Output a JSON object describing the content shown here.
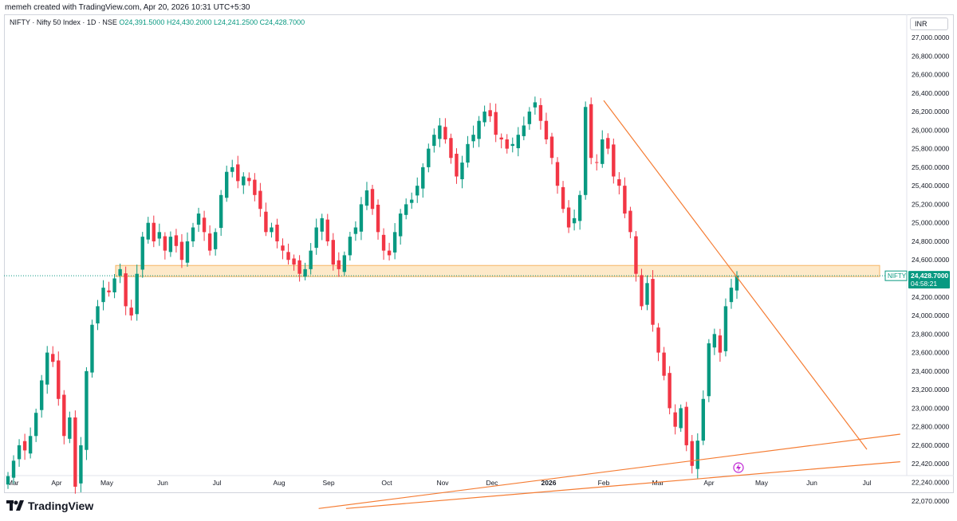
{
  "header": {
    "attribution": "memeh created with TradingView.com, Apr 20, 2026 10:31 UTC+5:30"
  },
  "legend": {
    "symbol": "NIFTY · Nifty 50 Index · 1D · NSE",
    "open": "O24,391.5000",
    "high": "H24,430.2000",
    "low": "L24,241.2500",
    "close": "C24,428.7000"
  },
  "price_scale": {
    "currency": "INR"
  },
  "price_label": {
    "symbol": "NIFTY",
    "price": "24,428.7000",
    "countdown": "04:58:21"
  },
  "footer": {
    "brand": "TradingView"
  },
  "colors": {
    "up": "#089981",
    "down": "#f23645",
    "trendline": "#f57c33",
    "zone_fill": "#fde9c9",
    "zone_border": "#f5b465"
  },
  "chart_data": {
    "type": "candlestick",
    "symbol": "NIFTY",
    "exchange": "NSE",
    "interval": "1D",
    "x_ticks": [
      "Mar",
      "Apr",
      "May",
      "Jun",
      "Jul",
      "Aug",
      "Sep",
      "Oct",
      "Nov",
      "Dec",
      "2026",
      "Feb",
      "Mar",
      "Apr",
      "May",
      "Jun",
      "Jul"
    ],
    "y_ticks": [
      27000,
      26800,
      26600,
      26400,
      26200,
      26000,
      25800,
      25600,
      25400,
      25200,
      25000,
      24800,
      24600,
      24400,
      24200,
      24000,
      23800,
      23600,
      23400,
      23200,
      23000,
      22800,
      22600,
      22420,
      22240,
      22070
    ],
    "y_tick_labels": [
      "27,000.0000",
      "26,800.0000",
      "26,600.0000",
      "26,400.0000",
      "26,200.0000",
      "26,000.0000",
      "25,800.0000",
      "25,600.0000",
      "25,400.0000",
      "25,200.0000",
      "25,000.0000",
      "24,800.0000",
      "24,600.0000",
      "24,400.0000",
      "24,200.0000",
      "24,000.0000",
      "23,800.0000",
      "23,600.0000",
      "23,400.0000",
      "23,200.0000",
      "23,000.0000",
      "22,800.0000",
      "22,600.0000",
      "22,420.0000",
      "22,240.0000",
      "22,070.0000"
    ],
    "last_price": 24428.7,
    "ohlc_last": {
      "open": 24391.5,
      "high": 24430.2,
      "low": 24241.25,
      "close": 24428.7
    },
    "closes_approx": [
      22300,
      22450,
      22600,
      22550,
      22700,
      22950,
      23300,
      23600,
      23500,
      23100,
      22700,
      22900,
      22200,
      22600,
      23400,
      23900,
      24100,
      24300,
      24250,
      24400,
      24500,
      24100,
      24000,
      24450,
      24850,
      25000,
      24800,
      24900,
      24700,
      24850,
      24750,
      24600,
      24800,
      24950,
      25100,
      24900,
      24700,
      24900,
      25300,
      25550,
      25600,
      25450,
      25500,
      25450,
      25300,
      25150,
      24900,
      24950,
      24800,
      24700,
      24600,
      24550,
      24450,
      24500,
      24700,
      24950,
      25050,
      24800,
      24550,
      24500,
      24650,
      24850,
      24950,
      25200,
      25350,
      25150,
      24900,
      24700,
      24650,
      24900,
      25100,
      25200,
      25250,
      25400,
      25600,
      25800,
      25950,
      26050,
      25900,
      25700,
      25500,
      25650,
      25850,
      25950,
      26100,
      26200,
      26150,
      25950,
      25900,
      25800,
      25850,
      25950,
      26050,
      26200,
      26300,
      26100,
      25900,
      25700,
      25400,
      25150,
      24950,
      25050,
      25300,
      26250,
      25700,
      25650,
      25900,
      25800,
      25500,
      25400,
      25100,
      24900,
      24450,
      24100,
      24350,
      23900,
      23600,
      23350,
      23000,
      22800,
      23000,
      22600,
      22400,
      22650,
      23100,
      23700,
      23800,
      23600,
      24100,
      24300,
      24428.7
    ],
    "horizontal_zone": {
      "from": 24420,
      "to": 24540
    },
    "trendlines": [
      {
        "label": "",
        "from": {
          "date": "2026-02-01",
          "price": 26320
        },
        "to": {
          "date": "2026-07-01",
          "price": 22560
        }
      },
      {
        "label": "",
        "from": {
          "date": "2025-08-25",
          "price": 22000
        },
        "to": {
          "date": "2026-07-20",
          "price": 22720
        }
      },
      {
        "label": "",
        "from": {
          "date": "2025-09-10",
          "price": 22000
        },
        "to": {
          "date": "2026-07-20",
          "price": 22440
        }
      }
    ]
  }
}
